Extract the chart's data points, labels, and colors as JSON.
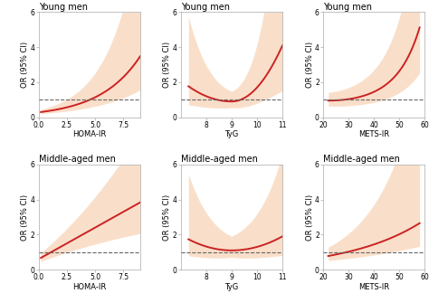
{
  "panels": [
    {
      "title": "Young men",
      "xlabel": "HOMA-IR",
      "ylabel": "OR (95% CI)",
      "xlim": [
        0,
        9
      ],
      "ylim": [
        0,
        6
      ],
      "xticks": [
        0,
        2.5,
        5.0,
        7.5
      ],
      "yticks": [
        0,
        2,
        4,
        6
      ],
      "curve_type": "homa_young",
      "x_start": 0.2,
      "x_end": 9.0
    },
    {
      "title": "Young men",
      "xlabel": "TyG",
      "ylabel": "OR (95% CI)",
      "xlim": [
        7,
        11
      ],
      "ylim": [
        0,
        6
      ],
      "xticks": [
        8,
        9,
        10,
        11
      ],
      "yticks": [
        0,
        2,
        4,
        6
      ],
      "curve_type": "tyg_young",
      "x_start": 7.3,
      "x_end": 11.0
    },
    {
      "title": "Young men",
      "xlabel": "METS-IR",
      "ylabel": "OR (95% CI)",
      "xlim": [
        20,
        60
      ],
      "ylim": [
        0,
        6
      ],
      "xticks": [
        20,
        30,
        40,
        50,
        60
      ],
      "yticks": [
        0,
        2,
        4,
        6
      ],
      "curve_type": "mets_young",
      "x_start": 22,
      "x_end": 58
    },
    {
      "title": "Middle-aged men",
      "xlabel": "HOMA-IR",
      "ylabel": "OR (95% CI)",
      "xlim": [
        0,
        9
      ],
      "ylim": [
        0,
        6
      ],
      "xticks": [
        0,
        2.5,
        5.0,
        7.5
      ],
      "yticks": [
        0,
        2,
        4,
        6
      ],
      "curve_type": "homa_middle",
      "x_start": 0.2,
      "x_end": 9.0
    },
    {
      "title": "Middle-aged men",
      "xlabel": "TyG",
      "ylabel": "OR (95% CI)",
      "xlim": [
        7,
        11
      ],
      "ylim": [
        0,
        6
      ],
      "xticks": [
        8,
        9,
        10,
        11
      ],
      "yticks": [
        0,
        2,
        4,
        6
      ],
      "curve_type": "tyg_middle",
      "x_start": 7.3,
      "x_end": 11.0
    },
    {
      "title": "Middle-aged men",
      "xlabel": "METS-IR",
      "ylabel": "OR (95% CI)",
      "xlim": [
        20,
        60
      ],
      "ylim": [
        0,
        6
      ],
      "xticks": [
        20,
        30,
        40,
        50,
        60
      ],
      "yticks": [
        0,
        2,
        4,
        6
      ],
      "curve_type": "mets_middle",
      "x_start": 22,
      "x_end": 58
    }
  ],
  "line_color": "#cc2222",
  "fill_color": "#f5c6a0",
  "fill_alpha": 0.55,
  "ref_color": "#666666",
  "ref_linestyle": "--",
  "ref_linewidth": 0.8,
  "line_width": 1.4,
  "title_fontsize": 7,
  "label_fontsize": 6,
  "tick_fontsize": 5.5,
  "background_color": "#ffffff"
}
